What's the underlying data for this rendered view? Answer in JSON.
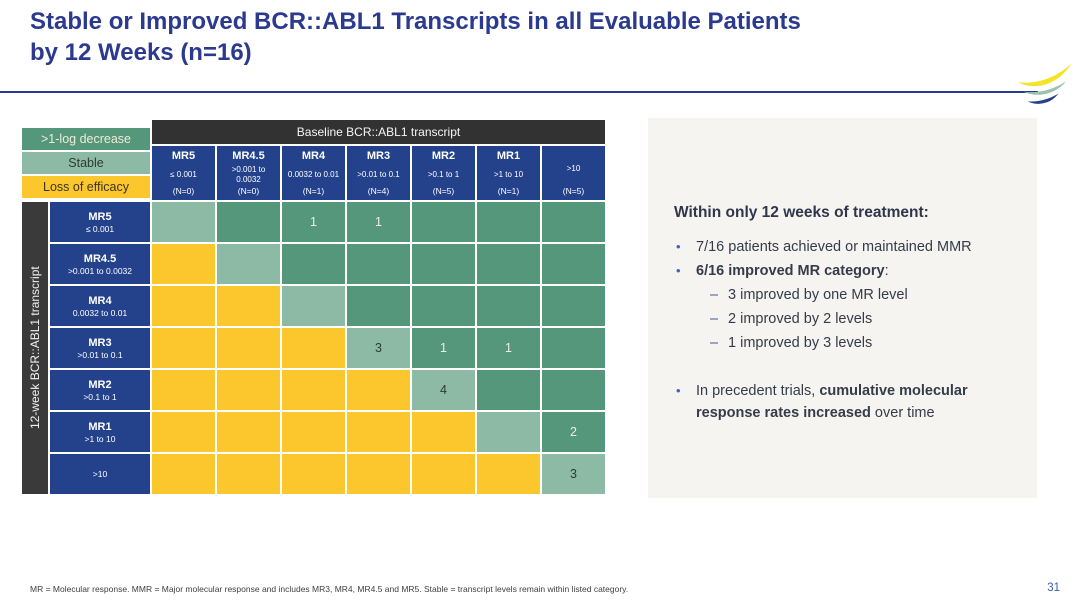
{
  "slide": {
    "title_line1": "Stable or Improved BCR::ABL1 Transcripts in all Evaluable Patients",
    "title_line2": "by 12 Weeks (n=16)",
    "footnote": "MR = Molecular response. MMR = Major molecular response and includes MR3, MR4, MR4.5 and MR5. Stable = transcript levels remain within listed category.",
    "page_number": "31"
  },
  "colors": {
    "improve": "#54977a",
    "stable": "#8cbaa5",
    "loss": "#fcc72d",
    "header_blue": "#24428c",
    "band_dark": "#323232",
    "title_navy": "#2b3a8f",
    "panel_bg": "#f5f4f1",
    "improve_text": "#f2eddc",
    "dark_text": "#2f3b33",
    "logo_yellow": "#f3e427",
    "logo_green": "#9dc3ae",
    "logo_blue": "#27408b"
  },
  "legend": [
    {
      "key": "improve",
      "label": ">1-log decrease",
      "label_color": "#f1ead8"
    },
    {
      "key": "stable",
      "label": "Stable",
      "label_color": "#2f3b33"
    },
    {
      "key": "loss",
      "label": "Loss of efficacy",
      "label_color": "#3c3423"
    }
  ],
  "matrix": {
    "corner_header": "Baseline BCR::ABL1 transcript",
    "row_axis_label": "12-week BCR::ABL1 transcript",
    "columns": [
      {
        "name": "MR5",
        "range": "≤ 0.001",
        "n": "(N=0)"
      },
      {
        "name": "MR4.5",
        "range": ">0.001 to 0.0032",
        "n": "(N=0)"
      },
      {
        "name": "MR4",
        "range": "0.0032 to 0.01",
        "n": "(N=1)"
      },
      {
        "name": "MR3",
        "range": ">0.01 to 0.1",
        "n": "(N=4)"
      },
      {
        "name": "MR2",
        "range": ">0.1 to 1",
        "n": "(N=5)"
      },
      {
        "name": "MR1",
        "range": ">1 to 10",
        "n": "(N=1)"
      },
      {
        "name": "",
        "range": ">10",
        "n": "(N=5)"
      }
    ],
    "rows": [
      {
        "name": "MR5",
        "range": "≤ 0.001"
      },
      {
        "name": "MR4.5",
        "range": ">0.001 to 0.0032"
      },
      {
        "name": "MR4",
        "range": "0.0032 to 0.01"
      },
      {
        "name": "MR3",
        "range": ">0.01 to 0.1"
      },
      {
        "name": "MR2",
        "range": ">0.1 to 1"
      },
      {
        "name": "MR1",
        "range": ">1 to 10"
      },
      {
        "name": "",
        "range": ">10"
      }
    ],
    "cells": [
      [
        {
          "t": "stable"
        },
        {
          "t": "improve"
        },
        {
          "t": "improve",
          "v": "1"
        },
        {
          "t": "improve",
          "v": "1"
        },
        {
          "t": "improve"
        },
        {
          "t": "improve"
        },
        {
          "t": "improve"
        }
      ],
      [
        {
          "t": "loss"
        },
        {
          "t": "stable"
        },
        {
          "t": "improve"
        },
        {
          "t": "improve"
        },
        {
          "t": "improve"
        },
        {
          "t": "improve"
        },
        {
          "t": "improve"
        }
      ],
      [
        {
          "t": "loss"
        },
        {
          "t": "loss"
        },
        {
          "t": "stable"
        },
        {
          "t": "improve"
        },
        {
          "t": "improve"
        },
        {
          "t": "improve"
        },
        {
          "t": "improve"
        }
      ],
      [
        {
          "t": "loss"
        },
        {
          "t": "loss"
        },
        {
          "t": "loss"
        },
        {
          "t": "stable",
          "v": "3"
        },
        {
          "t": "improve",
          "v": "1"
        },
        {
          "t": "improve",
          "v": "1"
        },
        {
          "t": "improve"
        }
      ],
      [
        {
          "t": "loss"
        },
        {
          "t": "loss"
        },
        {
          "t": "loss"
        },
        {
          "t": "loss"
        },
        {
          "t": "stable",
          "v": "4"
        },
        {
          "t": "improve"
        },
        {
          "t": "improve"
        }
      ],
      [
        {
          "t": "loss"
        },
        {
          "t": "loss"
        },
        {
          "t": "loss"
        },
        {
          "t": "loss"
        },
        {
          "t": "loss"
        },
        {
          "t": "stable"
        },
        {
          "t": "improve",
          "v": "2"
        }
      ],
      [
        {
          "t": "loss"
        },
        {
          "t": "loss"
        },
        {
          "t": "loss"
        },
        {
          "t": "loss"
        },
        {
          "t": "loss"
        },
        {
          "t": "loss"
        },
        {
          "t": "stable",
          "v": "3"
        }
      ]
    ]
  },
  "panel": {
    "heading": "Within only 12 weeks of treatment:",
    "bullets": [
      {
        "level": 1,
        "spaced": false,
        "segments": [
          {
            "text": "7/16 patients achieved or maintained MMR",
            "bold": false
          }
        ]
      },
      {
        "level": 1,
        "spaced": false,
        "segments": [
          {
            "text": "6/16 improved MR category",
            "bold": true
          },
          {
            "text": ":",
            "bold": false
          }
        ]
      },
      {
        "level": 2,
        "spaced": false,
        "segments": [
          {
            "text": "3 improved by one MR level",
            "bold": false
          }
        ]
      },
      {
        "level": 2,
        "spaced": false,
        "segments": [
          {
            "text": "2 improved by 2 levels",
            "bold": false
          }
        ]
      },
      {
        "level": 2,
        "spaced": false,
        "segments": [
          {
            "text": "1 improved by 3 levels",
            "bold": false
          }
        ]
      },
      {
        "level": 1,
        "spaced": true,
        "segments": [
          {
            "text": "In precedent trials, ",
            "bold": false
          },
          {
            "text": "cumulative molecular response rates increased",
            "bold": true
          },
          {
            "text": " over time",
            "bold": false
          }
        ]
      }
    ]
  }
}
